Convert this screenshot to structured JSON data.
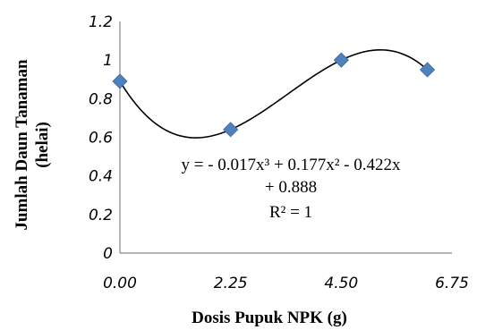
{
  "chart_data": {
    "type": "scatter",
    "xlabel": "Dosis Pupuk NPK (g)",
    "ylabel": "Jumlah Daun Tanaman (helai)",
    "ylabel_lines": [
      "Jumlah Daun Tanaman",
      "(helai)"
    ],
    "xlim": [
      0,
      6.75
    ],
    "ylim": [
      0,
      1.2
    ],
    "x_ticks": [
      "0.00",
      "2.25",
      "4.50",
      "6.75"
    ],
    "y_ticks": [
      "0",
      "0.2",
      "0.4",
      "0.6",
      "0.8",
      "1",
      "1.2"
    ],
    "points": [
      {
        "x": 0.0,
        "y": 0.89
      },
      {
        "x": 2.25,
        "y": 0.64
      },
      {
        "x": 4.5,
        "y": 1.0
      },
      {
        "x": 6.25,
        "y": 0.95
      }
    ],
    "trendline": {
      "type": "polynomial",
      "degree": 3,
      "coefficients": [
        -0.017,
        0.177,
        -0.422,
        0.888
      ],
      "equation_lines": [
        "y = - 0.017x³ + 0.177x² - 0.422x",
        "+ 0.888"
      ],
      "r2_label": "R² = 1"
    },
    "marker_color": "#4f81bd",
    "grid": false,
    "legend": "none"
  }
}
